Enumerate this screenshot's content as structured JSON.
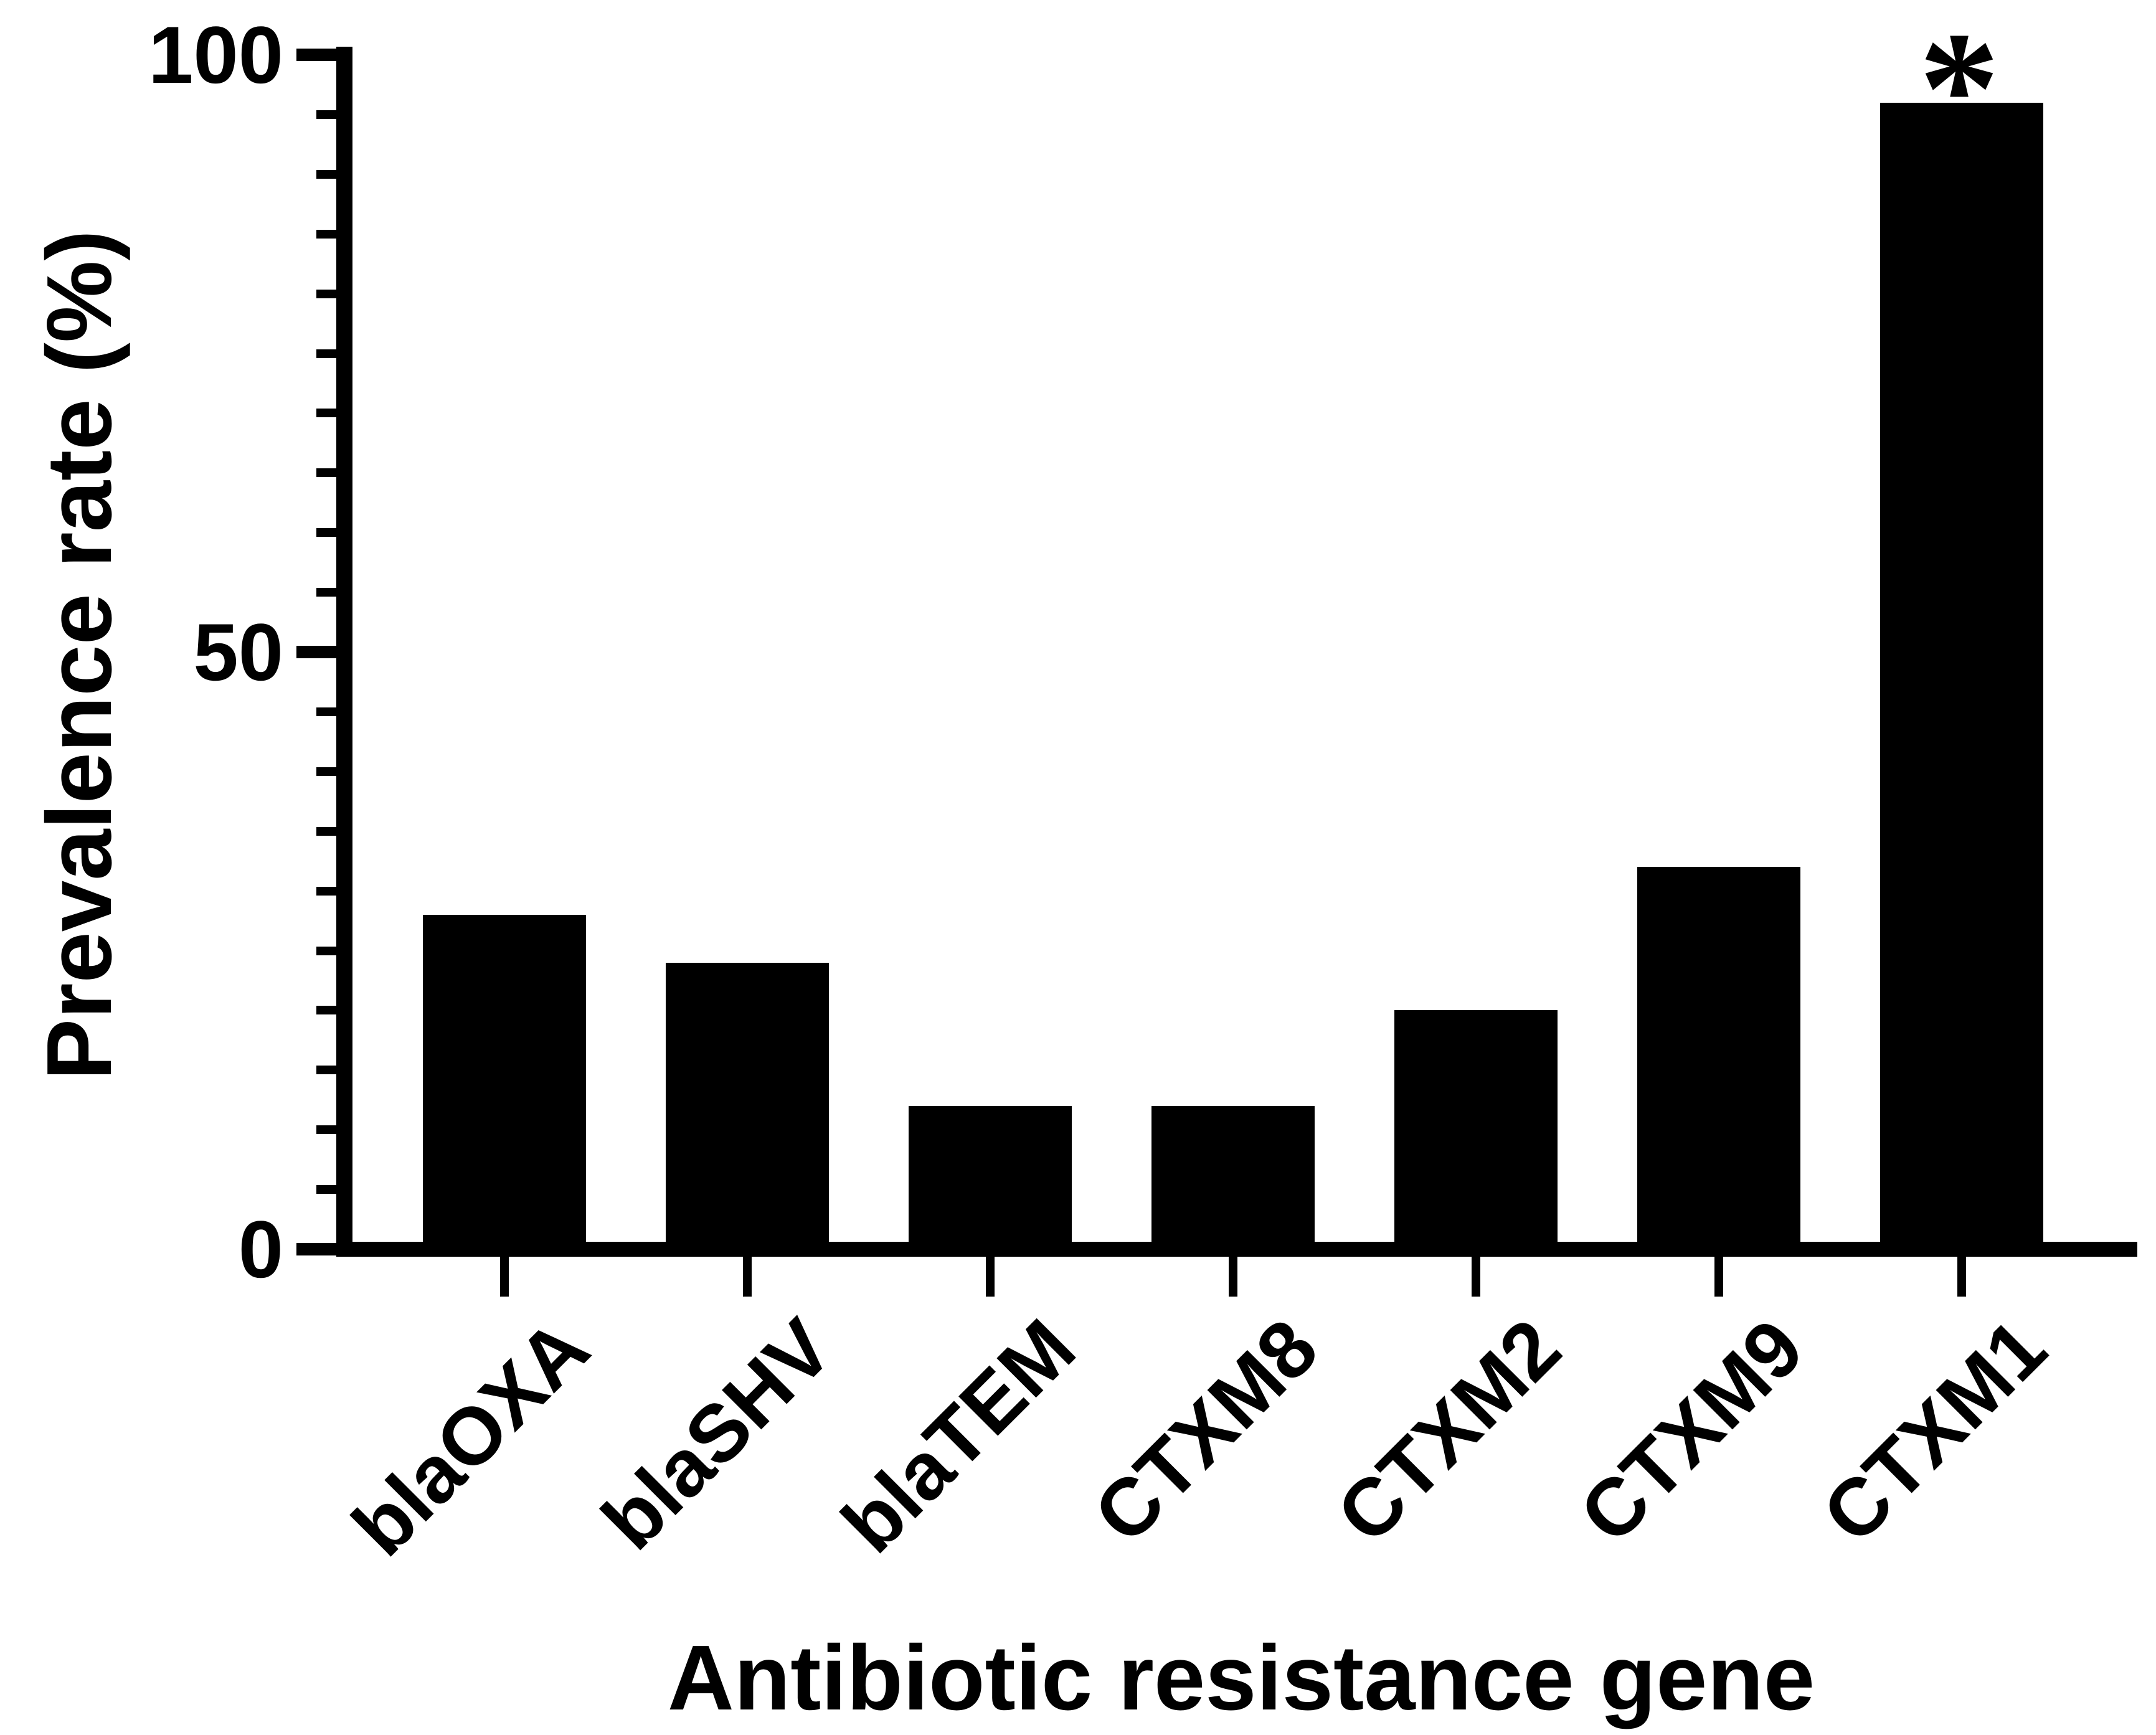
{
  "figure": {
    "background": "#ffffff",
    "bar_color": "#000000",
    "axis_color": "#000000"
  },
  "chart_data": {
    "type": "bar",
    "title": "",
    "xlabel": "Antibiotic resistance gene",
    "ylabel": "Prevalence rate (%)",
    "categories": [
      "blaOXA",
      "blaSHV",
      "blaTEM",
      "CTXM8",
      "CTXM2",
      "CTXM9",
      "CTXM1"
    ],
    "values": [
      28,
      24,
      12,
      12,
      20,
      32,
      96
    ],
    "ylim": [
      0,
      100
    ],
    "y_major_ticks": [
      0,
      50,
      100
    ],
    "y_minor_tick_step": 5,
    "grid": false,
    "legend": false,
    "annotations": [
      {
        "text": "*",
        "category": "CTXM1"
      }
    ]
  }
}
